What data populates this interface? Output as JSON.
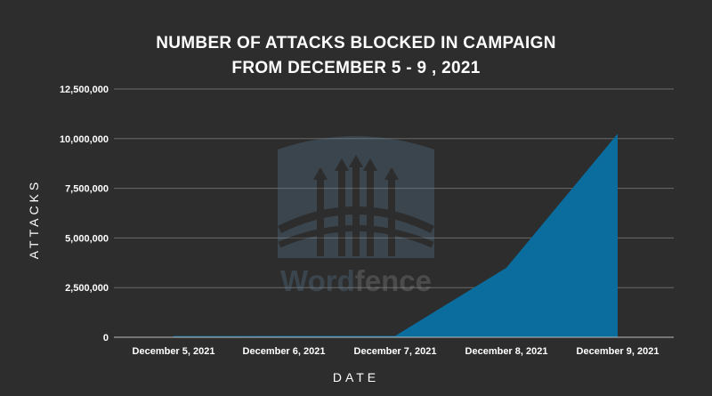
{
  "chart_data": {
    "type": "area",
    "title_lines": [
      "NUMBER OF ATTACKS BLOCKED IN CAMPAIGN",
      "FROM DECEMBER 5 - 9 , 2021"
    ],
    "xlabel": "DATE",
    "ylabel": "ATTACKS",
    "categories": [
      "December 5, 2021",
      "December 6, 2021",
      "December 7, 2021",
      "December 8, 2021",
      "December 9, 2021"
    ],
    "series": [
      {
        "values": [
          60000,
          65000,
          70000,
          3500000,
          10250000
        ]
      }
    ],
    "ylim": [
      0,
      12500000
    ],
    "yticks": [
      0,
      2500000,
      5000000,
      7500000,
      10000000,
      12500000
    ],
    "ytick_labels": [
      "0",
      "2,500,000",
      "5,000,000",
      "7,500,000",
      "10,000,000",
      "12,500,000"
    ],
    "grid": true,
    "colors": {
      "area": "#0a6d9e",
      "background": "#2d2d2d",
      "grid": "#6a6a6a",
      "text": "#ffffff"
    }
  },
  "watermark": {
    "text_part1": "Word",
    "text_part2": "fence"
  }
}
